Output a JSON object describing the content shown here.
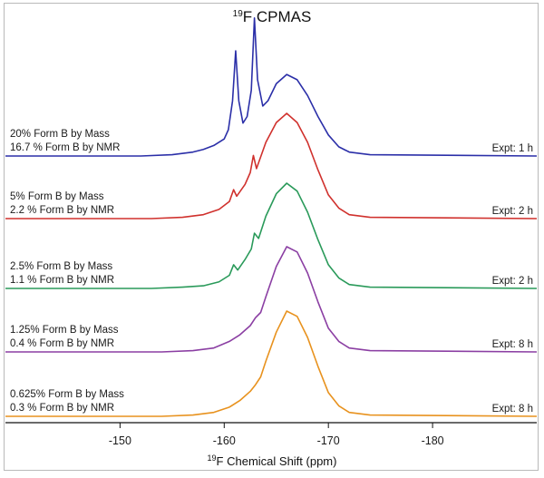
{
  "chart_data": {
    "type": "line",
    "title_prefix": "19",
    "title_main": "F CPMAS",
    "xlabel_prefix": "19",
    "xlabel_main": "F Chemical Shift (ppm)",
    "xlim": [
      -139,
      -190
    ],
    "x_ticks": [
      -150,
      -160,
      -170,
      -180
    ],
    "tick_labels": [
      "-150",
      "-160",
      "-170",
      "-180"
    ],
    "grid": false,
    "series": [
      {
        "label_mass": "20% Form B by Mass",
        "label_nmr": "16.7 % Form B by NMR",
        "expt": "Expt: 1 h",
        "color": "#2b2fa8",
        "points": [
          [
            -139,
            0
          ],
          [
            -152,
            0
          ],
          [
            -155,
            0.01
          ],
          [
            -157,
            0.03
          ],
          [
            -158,
            0.05
          ],
          [
            -159,
            0.08
          ],
          [
            -160,
            0.13
          ],
          [
            -160.4,
            0.2
          ],
          [
            -160.8,
            0.42
          ],
          [
            -161.1,
            0.8
          ],
          [
            -161.4,
            0.42
          ],
          [
            -161.8,
            0.25
          ],
          [
            -162.2,
            0.3
          ],
          [
            -162.6,
            0.5
          ],
          [
            -162.9,
            1.05
          ],
          [
            -163.2,
            0.58
          ],
          [
            -163.7,
            0.38
          ],
          [
            -164.2,
            0.42
          ],
          [
            -165,
            0.55
          ],
          [
            -166,
            0.62
          ],
          [
            -167,
            0.58
          ],
          [
            -168,
            0.46
          ],
          [
            -169,
            0.3
          ],
          [
            -170,
            0.16
          ],
          [
            -171,
            0.07
          ],
          [
            -172,
            0.03
          ],
          [
            -174,
            0.01
          ],
          [
            -190,
            0
          ]
        ]
      },
      {
        "label_mass": "5% Form B by Mass",
        "label_nmr": "2.2 % Form B by NMR",
        "expt": "Expt: 2 h",
        "color": "#d0312d",
        "points": [
          [
            -139,
            0
          ],
          [
            -153,
            0
          ],
          [
            -156,
            0.01
          ],
          [
            -158,
            0.03
          ],
          [
            -159.5,
            0.07
          ],
          [
            -160.5,
            0.13
          ],
          [
            -160.9,
            0.22
          ],
          [
            -161.2,
            0.17
          ],
          [
            -162,
            0.26
          ],
          [
            -162.5,
            0.35
          ],
          [
            -162.8,
            0.48
          ],
          [
            -163.1,
            0.38
          ],
          [
            -164,
            0.58
          ],
          [
            -165,
            0.73
          ],
          [
            -166,
            0.8
          ],
          [
            -167,
            0.73
          ],
          [
            -168,
            0.58
          ],
          [
            -169,
            0.37
          ],
          [
            -170,
            0.18
          ],
          [
            -171,
            0.08
          ],
          [
            -172,
            0.03
          ],
          [
            -174,
            0.01
          ],
          [
            -190,
            0
          ]
        ]
      },
      {
        "label_mass": "2.5% Form B by Mass",
        "label_nmr": "1.1 % Form B by NMR",
        "expt": "Expt: 2 h",
        "color": "#2a9a5a",
        "points": [
          [
            -139,
            0
          ],
          [
            -153,
            0
          ],
          [
            -156,
            0.01
          ],
          [
            -158,
            0.02
          ],
          [
            -159.5,
            0.05
          ],
          [
            -160.5,
            0.1
          ],
          [
            -160.9,
            0.18
          ],
          [
            -161.3,
            0.14
          ],
          [
            -162,
            0.22
          ],
          [
            -162.6,
            0.3
          ],
          [
            -162.9,
            0.42
          ],
          [
            -163.3,
            0.38
          ],
          [
            -164,
            0.55
          ],
          [
            -165,
            0.72
          ],
          [
            -166,
            0.8
          ],
          [
            -167,
            0.74
          ],
          [
            -168,
            0.58
          ],
          [
            -169,
            0.37
          ],
          [
            -170,
            0.18
          ],
          [
            -171,
            0.08
          ],
          [
            -172,
            0.03
          ],
          [
            -174,
            0.01
          ],
          [
            -190,
            0
          ]
        ]
      },
      {
        "label_mass": "1.25% Form B by Mass",
        "label_nmr": "0.4 % Form B by NMR",
        "expt": "Expt: 8 h",
        "color": "#8b3fa3",
        "points": [
          [
            -139,
            0
          ],
          [
            -154,
            0
          ],
          [
            -157,
            0.01
          ],
          [
            -159,
            0.03
          ],
          [
            -160.5,
            0.08
          ],
          [
            -161.5,
            0.13
          ],
          [
            -162.5,
            0.2
          ],
          [
            -163,
            0.26
          ],
          [
            -163.5,
            0.3
          ],
          [
            -164,
            0.42
          ],
          [
            -165,
            0.65
          ],
          [
            -166,
            0.8
          ],
          [
            -167,
            0.76
          ],
          [
            -168,
            0.6
          ],
          [
            -169,
            0.38
          ],
          [
            -170,
            0.18
          ],
          [
            -171,
            0.08
          ],
          [
            -172,
            0.03
          ],
          [
            -174,
            0.01
          ],
          [
            -190,
            0
          ]
        ]
      },
      {
        "label_mass": "0.625% Form B by Mass",
        "label_nmr": "0.3 % Form B by NMR",
        "expt": "Expt: 8 h",
        "color": "#e8921e",
        "points": [
          [
            -139,
            0
          ],
          [
            -154,
            0
          ],
          [
            -157,
            0.01
          ],
          [
            -159,
            0.03
          ],
          [
            -160.5,
            0.07
          ],
          [
            -161.5,
            0.12
          ],
          [
            -162.5,
            0.19
          ],
          [
            -163,
            0.24
          ],
          [
            -163.5,
            0.3
          ],
          [
            -164,
            0.42
          ],
          [
            -165,
            0.64
          ],
          [
            -166,
            0.8
          ],
          [
            -167,
            0.76
          ],
          [
            -168,
            0.6
          ],
          [
            -169,
            0.38
          ],
          [
            -170,
            0.18
          ],
          [
            -171,
            0.08
          ],
          [
            -172,
            0.03
          ],
          [
            -174,
            0.01
          ],
          [
            -190,
            0
          ]
        ]
      }
    ]
  }
}
